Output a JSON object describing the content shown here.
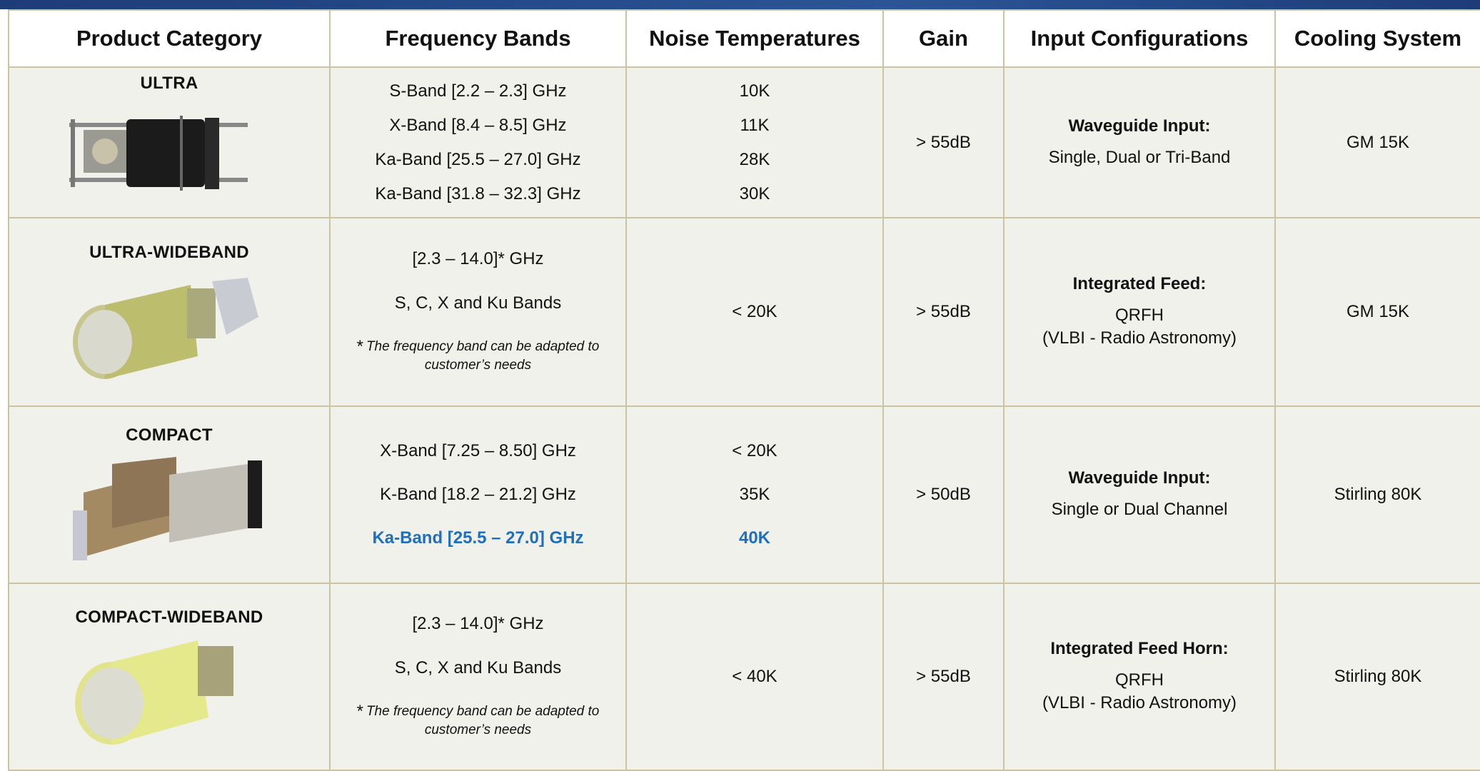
{
  "table": {
    "columns": [
      "Product Category",
      "Frequency Bands",
      "Noise Temperatures",
      "Gain",
      "Input Configurations",
      "Cooling System"
    ],
    "rows": [
      {
        "category": "ULTRA",
        "frequency_bands": [
          "S-Band [2.2 – 2.3] GHz",
          "X-Band [8.4 – 8.5] GHz",
          "Ka-Band [25.5 – 27.0] GHz",
          "Ka-Band [31.8 – 32.3] GHz"
        ],
        "noise_temperatures": [
          "10K",
          "11K",
          "28K",
          "30K"
        ],
        "gain": "> 55dB",
        "input_configuration": {
          "title": "Waveguide Input:",
          "lines": [
            "Single, Dual or Tri-Band"
          ]
        },
        "cooling_system": "GM 15K"
      },
      {
        "category": "ULTRA-WIDEBAND",
        "frequency_bands": [
          "[2.3 – 14.0]* GHz",
          "S, C, X and Ku Bands"
        ],
        "note": {
          "mark": "*",
          "text": "The frequency band can be adapted to customer’s needs"
        },
        "noise_temperatures": [
          "< 20K"
        ],
        "gain": "> 55dB",
        "input_configuration": {
          "title": "Integrated Feed:",
          "lines": [
            "QRFH",
            "(VLBI - Radio Astronomy)"
          ]
        },
        "cooling_system": "GM 15K"
      },
      {
        "category": "COMPACT",
        "frequency_bands": [
          "X-Band [7.25 – 8.50] GHz",
          "K-Band [18.2 – 21.2] GHz",
          "Ka-Band [25.5 – 27.0] GHz"
        ],
        "noise_temperatures": [
          "< 20K",
          "35K",
          "40K"
        ],
        "gain": "> 50dB",
        "input_configuration": {
          "title": "Waveguide Input:",
          "lines": [
            "Single or Dual Channel"
          ]
        },
        "cooling_system": "Stirling 80K"
      },
      {
        "category": "COMPACT-WIDEBAND",
        "frequency_bands": [
          "[2.3 – 14.0]* GHz",
          "S, C, X and Ku Bands"
        ],
        "note": {
          "mark": "*",
          "text": "The frequency band can be adapted to customer’s needs"
        },
        "noise_temperatures": [
          "< 40K"
        ],
        "gain": "> 55dB",
        "input_configuration": {
          "title": "Integrated Feed Horn:",
          "lines": [
            "QRFH",
            "(VLBI - Radio Astronomy)"
          ]
        },
        "cooling_system": "Stirling 80K"
      }
    ]
  }
}
